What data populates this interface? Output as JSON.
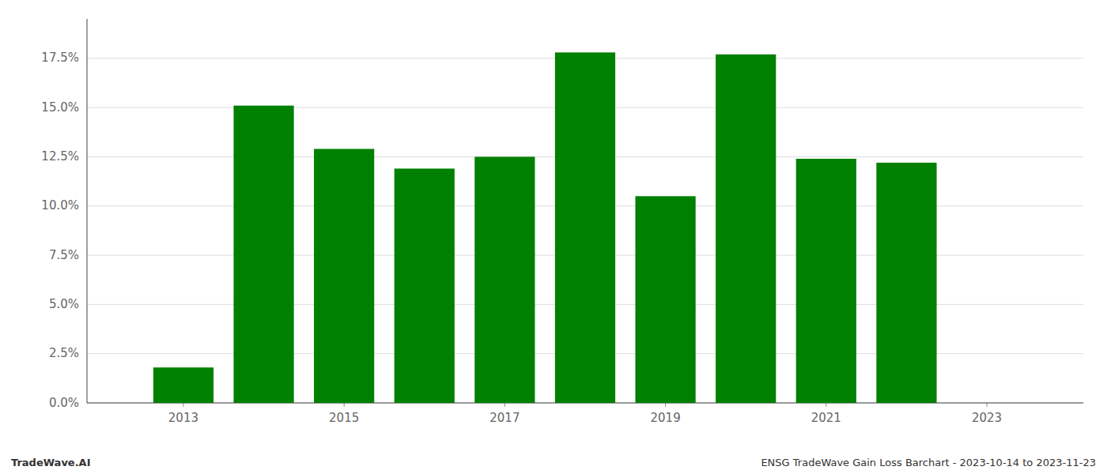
{
  "chart_data": {
    "type": "bar",
    "x": [
      2013,
      2014,
      2015,
      2016,
      2017,
      2018,
      2019,
      2020,
      2021,
      2022
    ],
    "values": [
      0.018,
      0.151,
      0.129,
      0.119,
      0.125,
      0.178,
      0.105,
      0.177,
      0.124,
      0.122
    ],
    "color": "#008000",
    "xlim": [
      2011.8,
      2024.2
    ],
    "xticks": [
      2013,
      2015,
      2017,
      2019,
      2021,
      2023
    ],
    "ylim": [
      0,
      0.195
    ],
    "yticks": [
      {
        "value": 0.0,
        "label": "0.0%"
      },
      {
        "value": 0.025,
        "label": "2.5%"
      },
      {
        "value": 0.05,
        "label": "5.0%"
      },
      {
        "value": 0.075,
        "label": "7.5%"
      },
      {
        "value": 0.1,
        "label": "10.0%"
      },
      {
        "value": 0.125,
        "label": "12.5%"
      },
      {
        "value": 0.15,
        "label": "15.0%"
      },
      {
        "value": 0.175,
        "label": "17.5%"
      }
    ],
    "grid": true,
    "annotations": [
      "TradeWave.AI",
      "ENSG TradeWave Gain Loss Barchart - 2023-10-14 to 2023-11-23"
    ]
  }
}
